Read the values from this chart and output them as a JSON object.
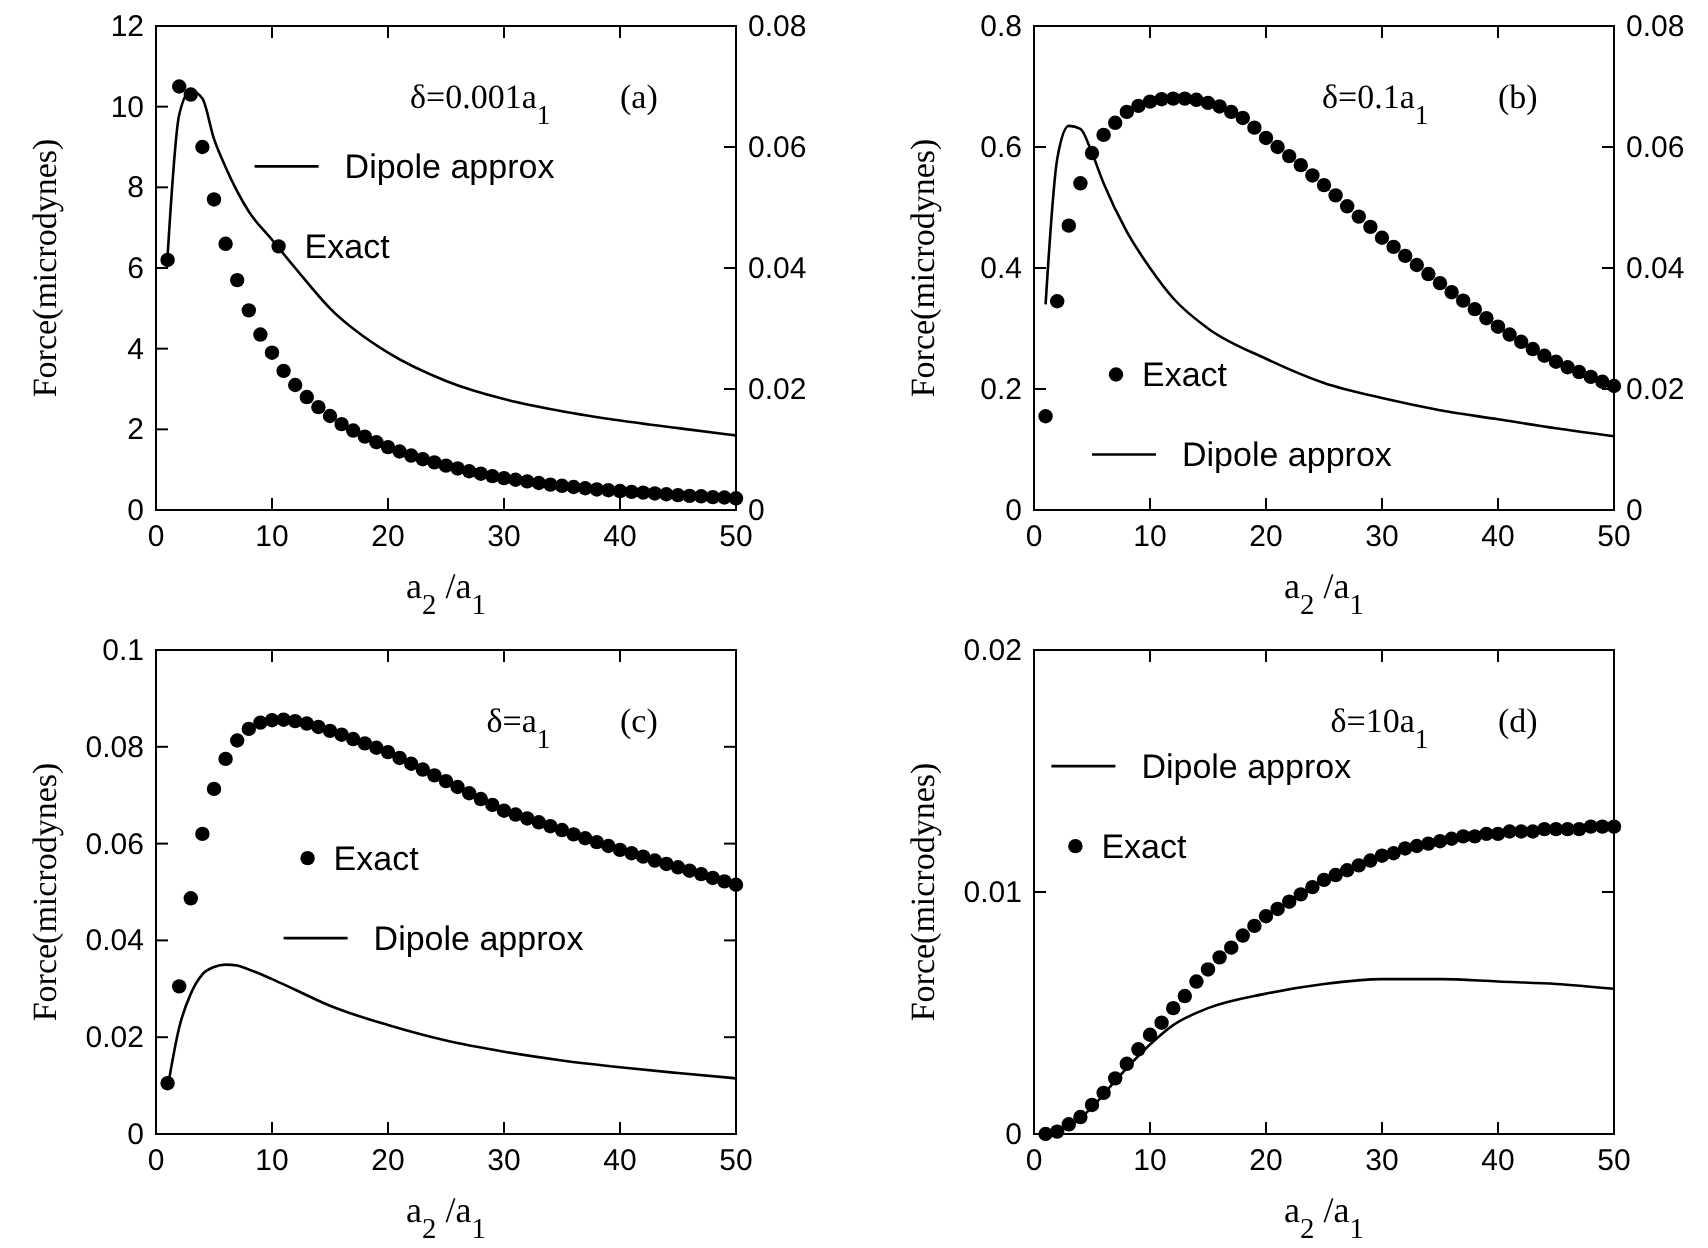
{
  "chart_data": [
    {
      "type": "scatter",
      "xlabel": "a$_{2}$/a$_{1}$",
      "ylabel": "Force(microdynes)",
      "annotations": [
        "δ=0.001a$_{1}$",
        "(a)"
      ],
      "xlim": [
        0,
        50
      ],
      "xticks": [
        0,
        10,
        20,
        30,
        40,
        50
      ],
      "ylim": [
        0,
        12
      ],
      "yticks": [
        0,
        2,
        4,
        6,
        8,
        10,
        12
      ],
      "y2lim": [
        0,
        0.08
      ],
      "y2ticks": [
        0,
        0.02,
        0.04,
        0.06,
        0.08
      ],
      "legend": "top",
      "grid": false,
      "marker": "circle",
      "series": [
        {
          "name": "Dipole approx",
          "type": "line",
          "color": "#000000",
          "marker": "none",
          "x": [
            1,
            2,
            3,
            4,
            5,
            6,
            7,
            8,
            10,
            12,
            15,
            20,
            25,
            30,
            35,
            40,
            45,
            50
          ],
          "values": [
            6.3,
            9.8,
            10.4,
            10.2,
            9.2,
            8.5,
            7.9,
            7.4,
            6.7,
            6.0,
            5.0,
            3.9,
            3.2,
            2.75,
            2.45,
            2.22,
            2.03,
            1.85
          ]
        },
        {
          "name": "Exact",
          "color": "#000000",
          "x": [
            1,
            2,
            3,
            4,
            5,
            6,
            7,
            8,
            9,
            10,
            11,
            12,
            13,
            14,
            15,
            16,
            17,
            18,
            19,
            20,
            21,
            22,
            23,
            24,
            25,
            26,
            27,
            28,
            29,
            30,
            31,
            32,
            33,
            34,
            35,
            36,
            37,
            38,
            39,
            40,
            41,
            42,
            43,
            44,
            45,
            46,
            47,
            48,
            49,
            50
          ],
          "values": [
            6.2,
            10.5,
            10.3,
            9.0,
            7.7,
            6.6,
            5.7,
            4.95,
            4.35,
            3.9,
            3.45,
            3.1,
            2.8,
            2.55,
            2.33,
            2.13,
            1.97,
            1.82,
            1.68,
            1.56,
            1.45,
            1.35,
            1.26,
            1.18,
            1.1,
            1.03,
            0.96,
            0.9,
            0.84,
            0.79,
            0.75,
            0.71,
            0.67,
            0.63,
            0.6,
            0.57,
            0.54,
            0.51,
            0.49,
            0.47,
            0.45,
            0.43,
            0.41,
            0.39,
            0.37,
            0.35,
            0.34,
            0.32,
            0.31,
            0.29
          ]
        }
      ]
    },
    {
      "type": "scatter",
      "xlabel": "a$_{2}$/a$_{1}$",
      "ylabel": "Force(microdynes)",
      "annotations": [
        "δ=0.1a$_{1}$",
        "(b)"
      ],
      "xlim": [
        0,
        50
      ],
      "xticks": [
        0,
        10,
        20,
        30,
        40,
        50
      ],
      "ylim": [
        0,
        0.8
      ],
      "yticks": [
        0,
        0.2,
        0.4,
        0.6,
        0.8
      ],
      "y2lim": [
        0,
        0.08
      ],
      "y2ticks": [
        0,
        0.02,
        0.04,
        0.06,
        0.08
      ],
      "legend": "bottom left",
      "grid": false,
      "marker": "circle",
      "series": [
        {
          "name": "Exact",
          "color": "#000000",
          "x": [
            1,
            2,
            3,
            4,
            5,
            6,
            7,
            8,
            9,
            10,
            11,
            12,
            13,
            14,
            15,
            16,
            17,
            18,
            19,
            20,
            21,
            22,
            23,
            24,
            25,
            26,
            27,
            28,
            29,
            30,
            31,
            32,
            33,
            34,
            35,
            36,
            37,
            38,
            39,
            40,
            41,
            42,
            43,
            44,
            45,
            46,
            47,
            48,
            49,
            50
          ],
          "values": [
            0.155,
            0.345,
            0.47,
            0.54,
            0.59,
            0.62,
            0.64,
            0.658,
            0.668,
            0.675,
            0.679,
            0.68,
            0.68,
            0.678,
            0.673,
            0.667,
            0.658,
            0.648,
            0.632,
            0.615,
            0.6,
            0.585,
            0.57,
            0.553,
            0.537,
            0.52,
            0.502,
            0.485,
            0.468,
            0.45,
            0.435,
            0.42,
            0.405,
            0.39,
            0.375,
            0.36,
            0.346,
            0.332,
            0.317,
            0.303,
            0.29,
            0.278,
            0.266,
            0.255,
            0.245,
            0.236,
            0.228,
            0.22,
            0.212,
            0.205
          ]
        },
        {
          "name": "Dipole approx",
          "type": "line",
          "color": "#000000",
          "marker": "none",
          "x": [
            1,
            2,
            3,
            4,
            5,
            6,
            8,
            10,
            12,
            15,
            20,
            25,
            30,
            35,
            40,
            45,
            50
          ],
          "values": [
            0.34,
            0.58,
            0.635,
            0.63,
            0.59,
            0.54,
            0.46,
            0.4,
            0.35,
            0.3,
            0.25,
            0.21,
            0.185,
            0.165,
            0.15,
            0.135,
            0.122
          ]
        }
      ]
    },
    {
      "type": "scatter",
      "xlabel": "a$_{2}$/a$_{1}$",
      "ylabel": "Force(microdynes)",
      "annotations": [
        "δ=a$_{1}$",
        "(c)"
      ],
      "xlim": [
        0,
        50
      ],
      "xticks": [
        0,
        10,
        20,
        30,
        40,
        50
      ],
      "ylim": [
        0,
        0.1
      ],
      "yticks": [
        0,
        0.02,
        0.04,
        0.06,
        0.08,
        0.1
      ],
      "legend": "left",
      "grid": false,
      "marker": "circle",
      "series": [
        {
          "name": "Exact",
          "color": "#000000",
          "x": [
            1,
            2,
            3,
            4,
            5,
            6,
            7,
            8,
            9,
            10,
            11,
            12,
            13,
            14,
            15,
            16,
            17,
            18,
            19,
            20,
            21,
            22,
            23,
            24,
            25,
            26,
            27,
            28,
            29,
            30,
            31,
            32,
            33,
            34,
            35,
            36,
            37,
            38,
            39,
            40,
            41,
            42,
            43,
            44,
            45,
            46,
            47,
            48,
            49,
            50
          ],
          "values": [
            0.0105,
            0.0305,
            0.0487,
            0.062,
            0.0713,
            0.0775,
            0.0813,
            0.0837,
            0.085,
            0.0855,
            0.0856,
            0.0853,
            0.0848,
            0.0841,
            0.0833,
            0.0825,
            0.0816,
            0.0807,
            0.0798,
            0.0789,
            0.0777,
            0.0765,
            0.0753,
            0.0741,
            0.0729,
            0.0717,
            0.0704,
            0.0692,
            0.068,
            0.0668,
            0.066,
            0.0652,
            0.0644,
            0.0636,
            0.0628,
            0.0619,
            0.0611,
            0.0603,
            0.0595,
            0.0587,
            0.058,
            0.0573,
            0.0565,
            0.0558,
            0.0551,
            0.0544,
            0.0537,
            0.0529,
            0.0522,
            0.0515
          ]
        },
        {
          "name": "Dipole approx",
          "type": "line",
          "color": "#000000",
          "marker": "none",
          "x": [
            1,
            2,
            3,
            4,
            5,
            6,
            7,
            8,
            10,
            12,
            15,
            20,
            25,
            30,
            35,
            40,
            45,
            50
          ],
          "values": [
            0.0095,
            0.022,
            0.029,
            0.033,
            0.0345,
            0.035,
            0.0348,
            0.034,
            0.032,
            0.0298,
            0.0265,
            0.0225,
            0.0193,
            0.017,
            0.0152,
            0.0138,
            0.0126,
            0.0115
          ]
        }
      ]
    },
    {
      "type": "scatter",
      "xlabel": "a$_{2}$/a$_{1}$",
      "ylabel": "Force(microdynes)",
      "annotations": [
        "δ=10a$_{1}$",
        "(d)"
      ],
      "xlim": [
        0,
        50
      ],
      "xticks": [
        0,
        10,
        20,
        30,
        40,
        50
      ],
      "ylim": [
        0,
        0.02
      ],
      "yticks": [
        0,
        0.01,
        0.02
      ],
      "legend": "top left",
      "grid": false,
      "marker": "circle",
      "series": [
        {
          "name": "Dipole approx",
          "type": "line",
          "color": "#000000",
          "marker": "none",
          "x": [
            1,
            3,
            5,
            7,
            10,
            12,
            15,
            20,
            25,
            30,
            35,
            40,
            45,
            50
          ],
          "values": [
            0,
            0.0003,
            0.0011,
            0.0022,
            0.0037,
            0.0045,
            0.0052,
            0.0058,
            0.0062,
            0.0064,
            0.0064,
            0.0063,
            0.0062,
            0.006
          ]
        },
        {
          "name": "Exact",
          "color": "#000000",
          "x": [
            1,
            2,
            3,
            4,
            5,
            6,
            7,
            8,
            9,
            10,
            11,
            12,
            13,
            14,
            15,
            16,
            17,
            18,
            19,
            20,
            21,
            22,
            23,
            24,
            25,
            26,
            27,
            28,
            29,
            30,
            31,
            32,
            33,
            34,
            35,
            36,
            37,
            38,
            39,
            40,
            41,
            42,
            43,
            44,
            45,
            46,
            47,
            48,
            49,
            50
          ],
          "values": [
            0,
            0.0001,
            0.0004,
            0.0007,
            0.0012,
            0.0017,
            0.0023,
            0.0029,
            0.0035,
            0.0041,
            0.0046,
            0.0052,
            0.0057,
            0.0063,
            0.0068,
            0.0073,
            0.0077,
            0.0082,
            0.0086,
            0.009,
            0.0093,
            0.0096,
            0.0099,
            0.0102,
            0.0105,
            0.0107,
            0.0109,
            0.0111,
            0.0113,
            0.0115,
            0.0116,
            0.0118,
            0.0119,
            0.012,
            0.0121,
            0.0122,
            0.0123,
            0.0123,
            0.0124,
            0.0124,
            0.0125,
            0.0125,
            0.0125,
            0.0126,
            0.0126,
            0.0126,
            0.0126,
            0.0127,
            0.0127,
            0.0127
          ]
        }
      ]
    }
  ]
}
